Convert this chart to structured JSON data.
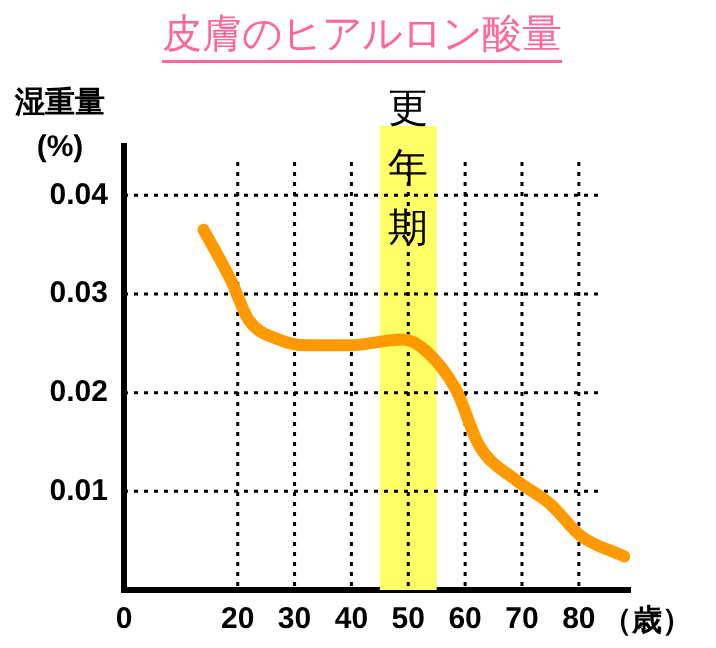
{
  "chart_data": {
    "type": "line",
    "title": "皮膚のヒアルロン酸量",
    "ylabel": "湿重量\n(%)",
    "xlabel": "（歳）",
    "x": [
      14,
      18.8,
      21.9,
      27.2,
      32.2,
      39.7,
      49,
      53,
      58.4,
      62.5,
      68.8,
      75,
      80.3,
      88
    ],
    "series": [
      {
        "color": "#ff9900",
        "values": [
          0.0365,
          0.0314,
          0.0274,
          0.0254,
          0.0248,
          0.0248,
          0.0254,
          0.0243,
          0.0203,
          0.0146,
          0.0112,
          0.0087,
          0.0055,
          0.0034
        ]
      }
    ],
    "xlim": [
      0,
      89
    ],
    "xticks": [
      0,
      20,
      30,
      40,
      50,
      60,
      70,
      80
    ],
    "ylim": [
      0,
      0.045
    ],
    "yticks": [
      0.01,
      0.02,
      0.03,
      0.04
    ],
    "bands": [
      {
        "axis": "x",
        "from": 45,
        "to": 55,
        "label": "更年期",
        "color": "#ffff66"
      }
    ],
    "grid": true,
    "legend": false,
    "marker": "none",
    "line_style": "solid"
  }
}
